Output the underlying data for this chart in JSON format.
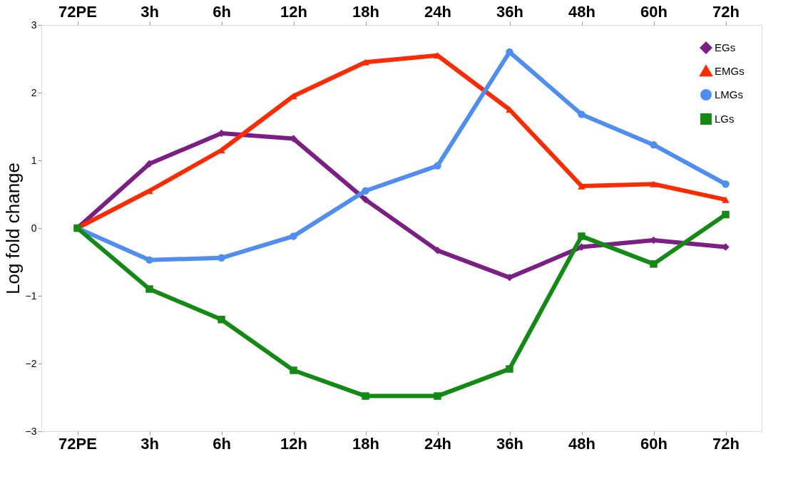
{
  "chart_data": {
    "type": "line",
    "ylabel": "Log fold change",
    "categories": [
      "72PE",
      "3h",
      "6h",
      "12h",
      "18h",
      "24h",
      "36h",
      "48h",
      "60h",
      "72h"
    ],
    "ylim": [
      -3,
      3
    ],
    "yticks": [
      -3,
      -2,
      -1,
      0,
      1,
      2,
      3
    ],
    "grid": false,
    "legend": "top right",
    "line_style": "solid",
    "series": [
      {
        "name": "EGs",
        "color": "#7b1f85",
        "marker": "diamond",
        "values": [
          0,
          0.95,
          1.4,
          1.32,
          0.42,
          -0.33,
          -0.73,
          -0.28,
          -0.18,
          -0.28
        ]
      },
      {
        "name": "EMGs",
        "color": "#ff2a00",
        "marker": "triangle",
        "values": [
          0,
          0.55,
          1.15,
          1.95,
          2.45,
          2.55,
          1.75,
          0.62,
          0.65,
          0.42
        ]
      },
      {
        "name": "LMGs",
        "color": "#4f8ef0",
        "marker": "circle",
        "values": [
          0,
          -0.47,
          -0.44,
          -0.12,
          0.55,
          0.92,
          2.6,
          1.68,
          1.23,
          0.65
        ]
      },
      {
        "name": "LGs",
        "color": "#138a13",
        "marker": "square",
        "values": [
          0,
          -0.9,
          -1.35,
          -2.1,
          -2.48,
          -2.48,
          -2.08,
          -0.12,
          -0.53,
          0.2
        ]
      }
    ]
  }
}
